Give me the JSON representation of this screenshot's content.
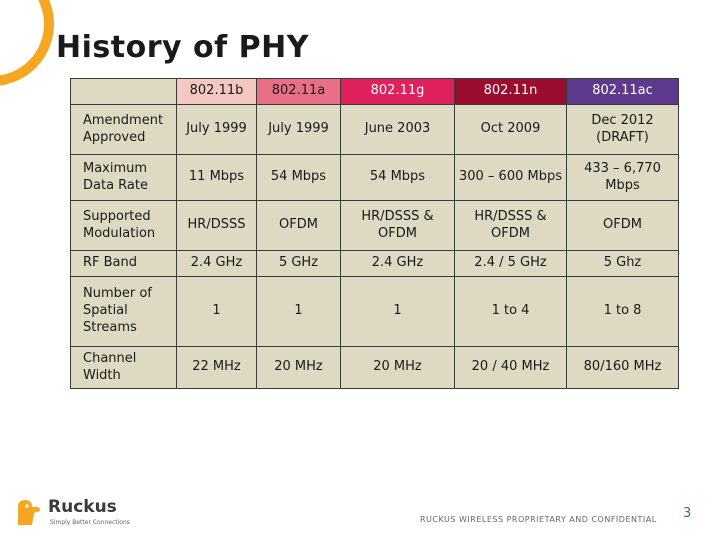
{
  "slide": {
    "title": "History of PHY",
    "footer": "RUCKUS WIRELESS PROPRIETARY AND CONFIDENTIAL",
    "page_number": "3"
  },
  "logo": {
    "name": "Ruckus",
    "tagline": "Simply Better Connections"
  },
  "colors": {
    "accent_orange": "#f5a623",
    "header_b": "#f4c7c3",
    "header_a": "#e86f86",
    "header_g": "#e0215e",
    "header_n": "#9c0c2f",
    "header_ac": "#5d3a8e",
    "cell_bg": "#ddd9c3"
  },
  "table": {
    "columns": [
      "802.11b",
      "802.11a",
      "802.11g",
      "802.11n",
      "802.11ac"
    ],
    "rows": [
      {
        "label": "Amendment Approved",
        "values": [
          "July 1999",
          "July 1999",
          "June 2003",
          "Oct 2009",
          "Dec 2012 (DRAFT)"
        ]
      },
      {
        "label": "Maximum Data Rate",
        "values": [
          "11 Mbps",
          "54 Mbps",
          "54 Mbps",
          "300 – 600 Mbps",
          "433 – 6,770 Mbps"
        ]
      },
      {
        "label": "Supported Modulation",
        "values": [
          "HR/DSSS",
          "OFDM",
          "HR/DSSS & OFDM",
          "HR/DSSS & OFDM",
          "OFDM"
        ]
      },
      {
        "label": "RF Band",
        "values": [
          "2.4 GHz",
          "5 GHz",
          "2.4 GHz",
          "2.4 / 5 GHz",
          "5 Ghz"
        ]
      },
      {
        "label": "Number of Spatial Streams",
        "values": [
          "1",
          "1",
          "1",
          "1 to 4",
          "1 to 8"
        ]
      },
      {
        "label": "Channel Width",
        "values": [
          "22 MHz",
          "20 MHz",
          "20 MHz",
          "20 / 40 MHz",
          "80/160 MHz"
        ]
      }
    ]
  }
}
